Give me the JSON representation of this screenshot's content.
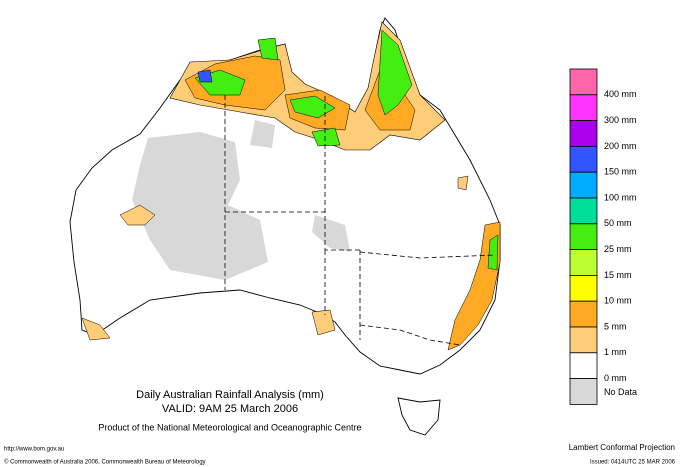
{
  "title": "Daily Australian Rainfall Analysis (mm)",
  "valid": "VALID: 9AM 25 March 2006",
  "product": "Product of the National Meteorological and Oceanographic Centre",
  "url": "http://www.bom.gov.au",
  "copyright": "© Commonwealth of Australia 2006, Commonwealth Bureau of Meteorology",
  "projection": "Lambert Conformal Projection",
  "issued": "Issued: 0414UTC 25 MAR 2006",
  "legend": {
    "colors": [
      "#ff66aa",
      "#ff33ff",
      "#aa00ee",
      "#3355ff",
      "#00aaff",
      "#00dd99",
      "#44ee11",
      "#bbff33",
      "#ffff00",
      "#ffaa22",
      "#ffcc77",
      "#ffffff",
      "#d8d8d8"
    ],
    "labels": [
      "400 mm",
      "300 mm",
      "200 mm",
      "150 mm",
      "100 mm",
      "50 mm",
      "25 mm",
      "15 mm",
      "10 mm",
      "5 mm",
      "1 mm",
      "0 mm",
      "No Data"
    ]
  }
}
